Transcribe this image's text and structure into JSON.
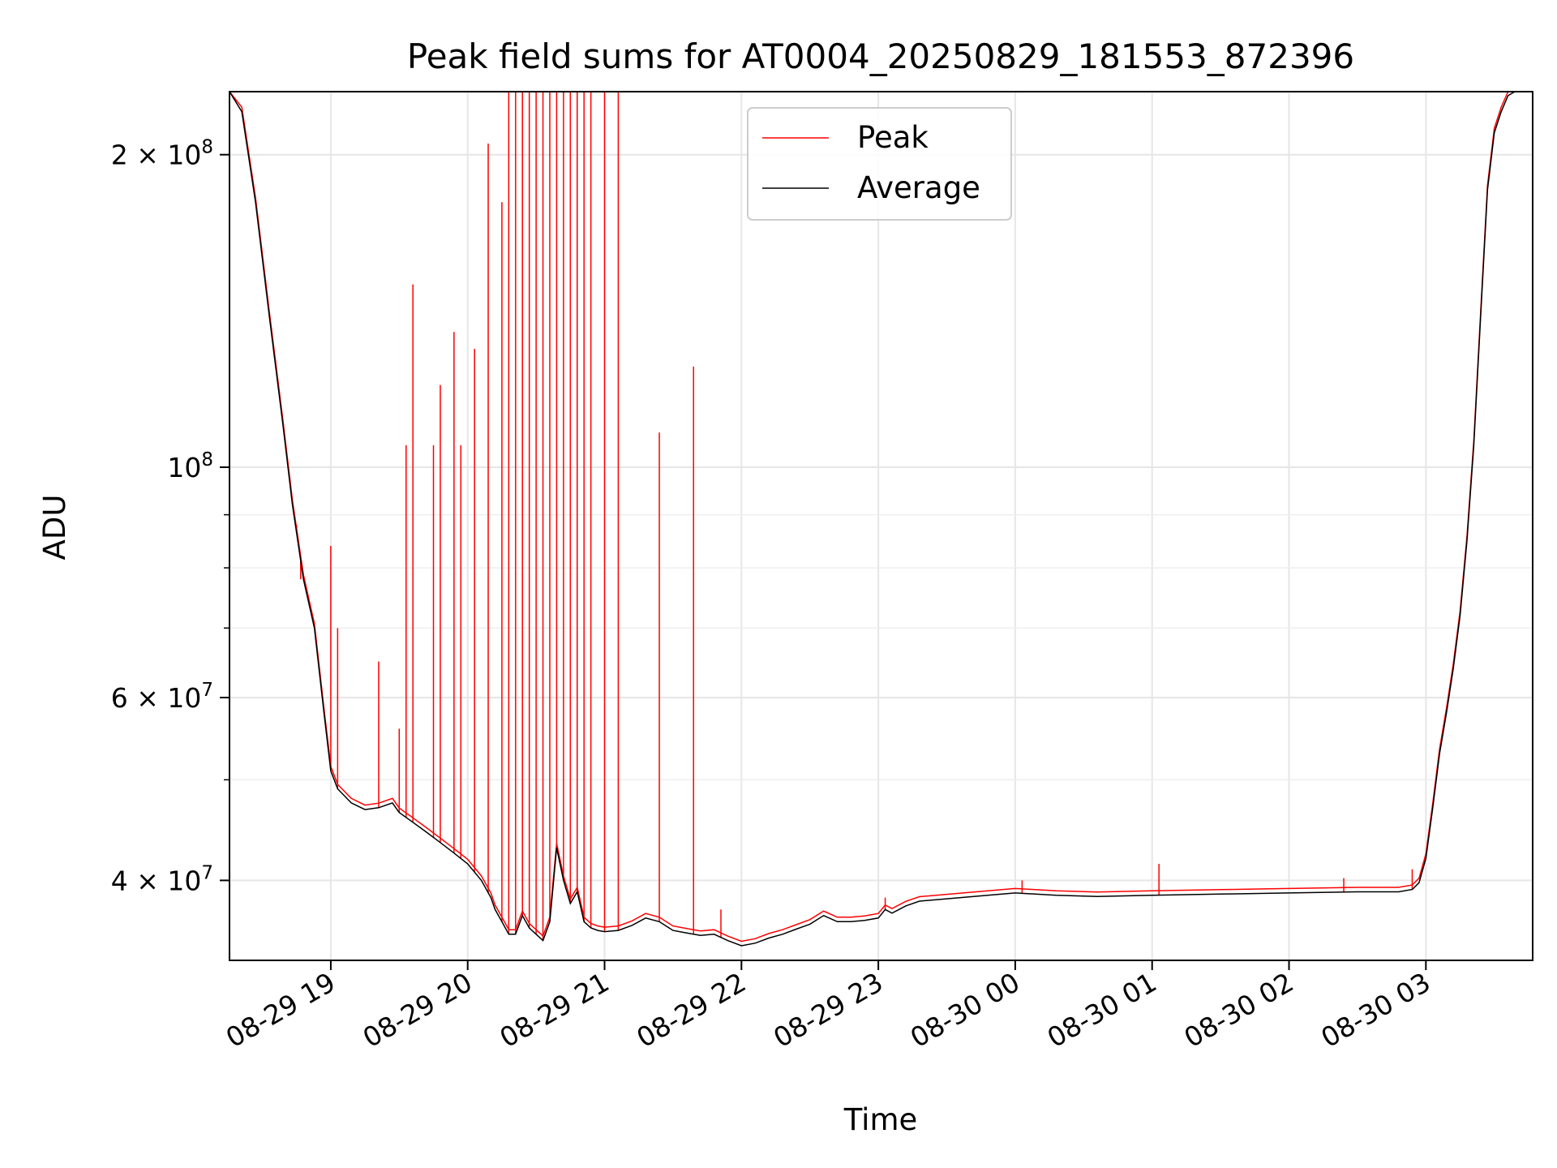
{
  "chart_data": {
    "type": "line",
    "title": "Peak field sums for AT0004_20250829_181553_872396",
    "xlabel": "Time",
    "ylabel": "ADU",
    "yscale": "log",
    "grid": true,
    "legend_position": "upper-center",
    "xlim_hours": [
      18.26,
      27.78
    ],
    "ylim": [
      33500000,
      230000000
    ],
    "x_ticks": [
      {
        "value": 19,
        "label": "08-29 19"
      },
      {
        "value": 20,
        "label": "08-29 20"
      },
      {
        "value": 21,
        "label": "08-29 21"
      },
      {
        "value": 22,
        "label": "08-29 22"
      },
      {
        "value": 23,
        "label": "08-29 23"
      },
      {
        "value": 24,
        "label": "08-30 00"
      },
      {
        "value": 25,
        "label": "08-30 01"
      },
      {
        "value": 26,
        "label": "08-30 02"
      },
      {
        "value": 27,
        "label": "08-30 03"
      }
    ],
    "y_major_ticks": [
      {
        "value": 40000000,
        "mant": "4",
        "times": "×",
        "base": "10",
        "exp": "7"
      },
      {
        "value": 60000000,
        "mant": "6",
        "times": "×",
        "base": "10",
        "exp": "7"
      },
      {
        "value": 100000000,
        "mant": "",
        "times": "",
        "base": "10",
        "exp": "8"
      },
      {
        "value": 200000000,
        "mant": "2",
        "times": "×",
        "base": "10",
        "exp": "8"
      }
    ],
    "y_minor_ticks": [
      50000000,
      70000000,
      80000000,
      90000000
    ],
    "series": [
      {
        "name": "Average",
        "color": "#000000",
        "x": [
          18.26,
          18.35,
          18.45,
          18.55,
          18.65,
          18.72,
          18.8,
          18.88,
          18.95,
          19.0,
          19.05,
          19.15,
          19.25,
          19.35,
          19.45,
          19.5,
          19.6,
          19.7,
          19.8,
          19.9,
          20.0,
          20.1,
          20.17,
          20.2,
          20.25,
          20.3,
          20.35,
          20.4,
          20.45,
          20.5,
          20.55,
          20.6,
          20.65,
          20.7,
          20.75,
          20.8,
          20.85,
          20.9,
          20.95,
          21.0,
          21.1,
          21.2,
          21.3,
          21.4,
          21.5,
          21.6,
          21.7,
          21.8,
          21.9,
          22.0,
          22.1,
          22.2,
          22.3,
          22.4,
          22.5,
          22.6,
          22.7,
          22.8,
          22.9,
          23.0,
          23.05,
          23.1,
          23.2,
          23.3,
          23.5,
          23.8,
          24.0,
          24.3,
          24.6,
          25.0,
          25.5,
          26.0,
          26.5,
          26.8,
          26.9,
          26.95,
          27.0,
          27.05,
          27.1,
          27.15,
          27.2,
          27.25,
          27.3,
          27.35,
          27.4,
          27.45,
          27.5,
          27.55,
          27.6,
          27.65,
          27.78
        ],
        "y": [
          230000000,
          220000000,
          180000000,
          140000000,
          110000000,
          92000000,
          78000000,
          70000000,
          58000000,
          51000000,
          49000000,
          47500000,
          46800000,
          47000000,
          47500000,
          46500000,
          45500000,
          44500000,
          43500000,
          42500000,
          41500000,
          40000000,
          38500000,
          37500000,
          36500000,
          35500000,
          35500000,
          37000000,
          36000000,
          35500000,
          35000000,
          36500000,
          43000000,
          40000000,
          38000000,
          39000000,
          36500000,
          36000000,
          35800000,
          35700000,
          35800000,
          36200000,
          36800000,
          36500000,
          35800000,
          35600000,
          35400000,
          35500000,
          35000000,
          34600000,
          34800000,
          35200000,
          35500000,
          35900000,
          36300000,
          37000000,
          36500000,
          36500000,
          36600000,
          36800000,
          37500000,
          37200000,
          37800000,
          38200000,
          38400000,
          38700000,
          38900000,
          38700000,
          38600000,
          38700000,
          38800000,
          38900000,
          39000000,
          39000000,
          39200000,
          39800000,
          42000000,
          47000000,
          53000000,
          58000000,
          64000000,
          72000000,
          85000000,
          105000000,
          140000000,
          185000000,
          210000000,
          220000000,
          228000000,
          230000000,
          230000000
        ]
      },
      {
        "name": "Peak",
        "color": "#ff0000",
        "x": [
          18.75,
          18.78,
          19.0,
          19.05,
          19.35,
          19.5,
          19.55,
          19.6,
          19.75,
          19.8,
          19.9,
          19.95,
          20.05,
          20.15,
          20.25,
          20.3,
          20.35,
          20.4,
          20.45,
          20.5,
          20.55,
          20.6,
          20.65,
          20.7,
          20.75,
          20.8,
          20.85,
          20.9,
          21.0,
          21.1,
          21.4,
          21.65,
          21.85,
          23.05,
          24.05,
          25.05,
          26.4,
          26.9
        ],
        "y": [
          88000000,
          78000000,
          84000000,
          70000000,
          65000000,
          56000000,
          105000000,
          150000000,
          105000000,
          120000000,
          135000000,
          105000000,
          130000000,
          205000000,
          180000000,
          230000000,
          230000000,
          230000000,
          230000000,
          230000000,
          230000000,
          230000000,
          230000000,
          230000000,
          230000000,
          230000000,
          230000000,
          230000000,
          230000000,
          230000000,
          108000000,
          125000000,
          37500000,
          38500000,
          40000000,
          41500000,
          40200000,
          41000000
        ]
      }
    ]
  }
}
